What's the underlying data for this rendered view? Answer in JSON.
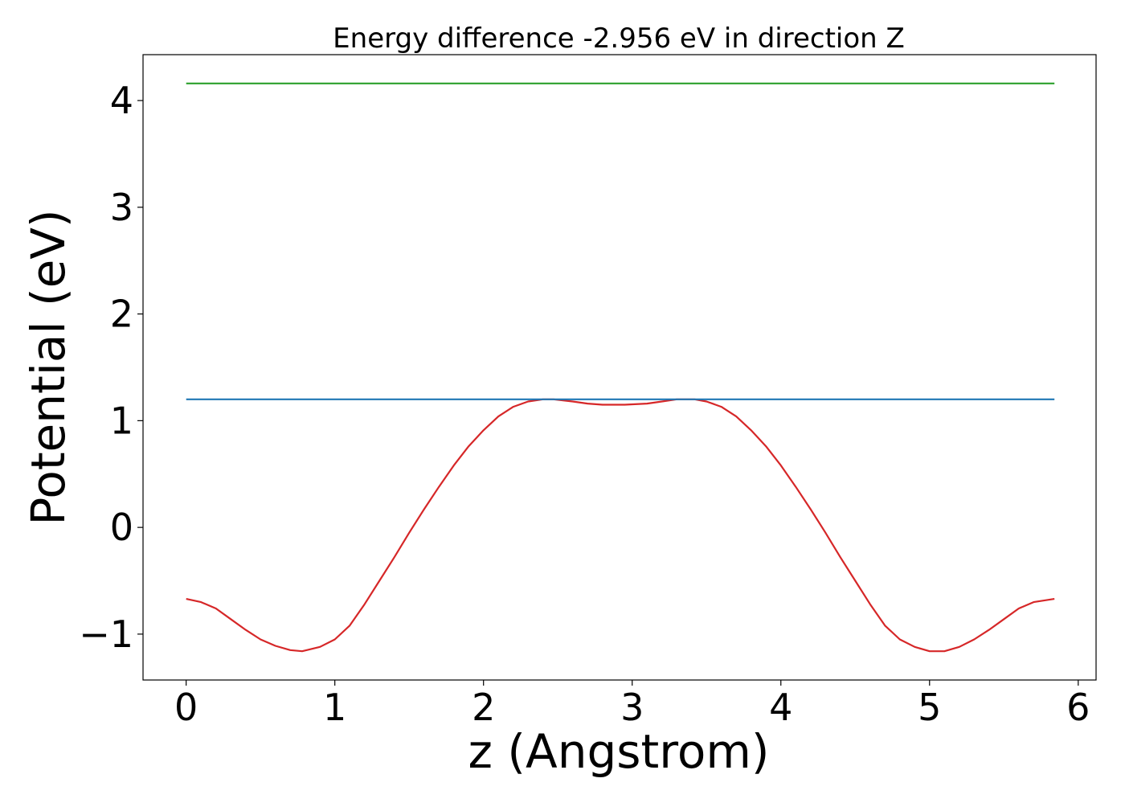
{
  "chart_data": {
    "type": "line",
    "title": "Energy difference -2.956 eV in direction Z",
    "xlabel": "z (Angstrom)",
    "ylabel": "Potential (eV)",
    "xlim": [
      -0.29,
      6.12
    ],
    "ylim": [
      -1.43,
      4.43
    ],
    "xticks": [
      0,
      1,
      2,
      3,
      4,
      5,
      6
    ],
    "yticks": [
      -1,
      0,
      1,
      2,
      3,
      4
    ],
    "xtick_labels": [
      "0",
      "1",
      "2",
      "3",
      "4",
      "5",
      "6"
    ],
    "ytick_labels": [
      "−1",
      "0",
      "1",
      "2",
      "3",
      "4"
    ],
    "grid": false,
    "series": [
      {
        "color": "#d62728",
        "x": [
          0.0,
          0.1,
          0.2,
          0.3,
          0.4,
          0.5,
          0.6,
          0.7,
          0.78,
          0.9,
          1.0,
          1.1,
          1.2,
          1.3,
          1.4,
          1.5,
          1.6,
          1.7,
          1.8,
          1.9,
          2.0,
          2.1,
          2.2,
          2.3,
          2.4,
          2.47,
          2.6,
          2.7,
          2.8,
          2.95,
          3.1,
          3.2,
          3.3,
          3.42,
          3.5,
          3.6,
          3.7,
          3.8,
          3.9,
          4.0,
          4.1,
          4.2,
          4.3,
          4.4,
          4.5,
          4.6,
          4.7,
          4.8,
          4.9,
          5.0,
          5.1,
          5.2,
          5.3,
          5.4,
          5.5,
          5.6,
          5.7,
          5.84
        ],
        "y": [
          -0.67,
          -0.7,
          -0.76,
          -0.86,
          -0.96,
          -1.05,
          -1.11,
          -1.15,
          -1.16,
          -1.12,
          -1.05,
          -0.92,
          -0.72,
          -0.5,
          -0.28,
          -0.05,
          0.17,
          0.38,
          0.58,
          0.76,
          0.91,
          1.04,
          1.13,
          1.18,
          1.2,
          1.2,
          1.18,
          1.16,
          1.15,
          1.15,
          1.16,
          1.18,
          1.2,
          1.2,
          1.18,
          1.13,
          1.04,
          0.91,
          0.76,
          0.58,
          0.38,
          0.17,
          -0.05,
          -0.28,
          -0.5,
          -0.72,
          -0.92,
          -1.05,
          -1.12,
          -1.16,
          -1.16,
          -1.12,
          -1.05,
          -0.96,
          -0.86,
          -0.76,
          -0.7,
          -0.67
        ]
      },
      {
        "color": "#1f77b4",
        "x": [
          0.0,
          5.84
        ],
        "y": [
          1.2,
          1.2
        ]
      },
      {
        "color": "#2ca02c",
        "x": [
          0.0,
          5.84
        ],
        "y": [
          4.16,
          4.16
        ]
      }
    ]
  }
}
